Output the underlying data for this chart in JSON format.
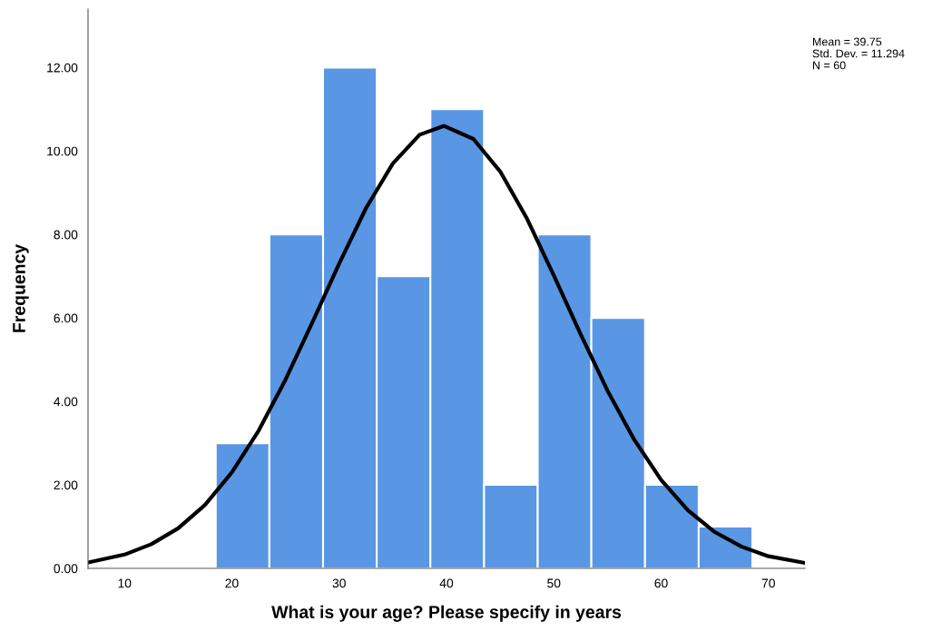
{
  "chart_data": {
    "type": "histogram",
    "xlabel": "What is your age? Please specify in years",
    "ylabel": "Frequency",
    "bins": [
      18.5,
      23.5,
      28.5,
      33.5,
      38.5,
      43.5,
      48.5,
      53.5,
      58.5,
      63.5,
      68.5
    ],
    "values": [
      3,
      8,
      12,
      7,
      11,
      2,
      8,
      6,
      2,
      1
    ],
    "color": "#5996e4",
    "series": [
      {
        "type": "line",
        "color": "#000000",
        "x": [
          6.6,
          10,
          12.5,
          15,
          17.5,
          20,
          22.5,
          25,
          27.5,
          30,
          32.5,
          35,
          37.5,
          39.75,
          42.5,
          45,
          47.5,
          50,
          52.5,
          55,
          57.5,
          60,
          62.5,
          65,
          67.5,
          70,
          73.4
        ],
        "values": [
          0.14,
          0.33,
          0.58,
          0.96,
          1.52,
          2.3,
          3.3,
          4.52,
          5.89,
          7.3,
          8.63,
          9.7,
          10.39,
          10.6,
          10.29,
          9.51,
          8.38,
          7.02,
          5.61,
          4.26,
          3.08,
          2.12,
          1.39,
          0.87,
          0.52,
          0.29,
          0.13
        ]
      }
    ],
    "xlim": [
      6.6,
      73.4
    ],
    "xticks": [
      10,
      20,
      30,
      40,
      50,
      60,
      70
    ],
    "ylim": [
      0,
      13.4
    ],
    "yticks": [
      {
        "value": 0,
        "label": "0.00"
      },
      {
        "value": 2,
        "label": "2.00"
      },
      {
        "value": 4,
        "label": "4.00"
      },
      {
        "value": 6,
        "label": "6.00"
      },
      {
        "value": 8,
        "label": "8.00"
      },
      {
        "value": 10,
        "label": "10.00"
      },
      {
        "value": 12,
        "label": "12.00"
      }
    ],
    "annotations": [
      "Mean = 39.75",
      "Std. Dev. = 11.294",
      "N = 60"
    ],
    "grid": false,
    "legend": false
  }
}
